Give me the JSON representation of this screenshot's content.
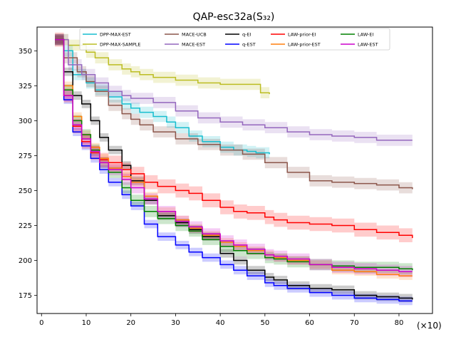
{
  "chart_data": {
    "type": "line",
    "title": "QAP-esc32a(S₃₂)",
    "xlabel": "",
    "ylabel": "",
    "x_multiplier_label": "(×10)",
    "xlim": [
      -1,
      87.5
    ],
    "ylim": [
      162,
      367
    ],
    "xticks": [
      0,
      10,
      20,
      30,
      40,
      50,
      60,
      70,
      80
    ],
    "yticks": [
      175,
      200,
      225,
      250,
      275,
      300,
      325,
      350
    ],
    "legend_position": "top-center",
    "series": [
      {
        "name": "DPP-MAX-EST",
        "color": "#17becf",
        "band": 4,
        "x": [
          3,
          5,
          7,
          10,
          12,
          15,
          18,
          20,
          22,
          25,
          28,
          30,
          33,
          36,
          40,
          43,
          46,
          48,
          51
        ],
        "y": [
          358,
          350,
          333,
          327,
          322,
          317,
          312,
          309,
          306,
          303,
          299,
          295,
          289,
          285,
          281,
          279,
          278,
          277,
          276
        ]
      },
      {
        "name": "DPP-MAX-SAMPLE",
        "color": "#bcbd22",
        "band": 4,
        "x": [
          3,
          6,
          10,
          12,
          15,
          18,
          20,
          22,
          25,
          30,
          35,
          40,
          45,
          48,
          49,
          51
        ],
        "y": [
          358,
          354,
          349,
          345,
          340,
          337,
          335,
          333,
          331,
          329,
          327,
          326,
          326,
          326,
          320,
          319
        ]
      },
      {
        "name": "MACE-UCB",
        "color": "#8c564b",
        "band": 4,
        "x": [
          3,
          5,
          8,
          10,
          12,
          15,
          18,
          20,
          22,
          25,
          30,
          35,
          40,
          45,
          50,
          55,
          60,
          65,
          70,
          75,
          80,
          83
        ],
        "y": [
          358,
          345,
          335,
          328,
          321,
          311,
          305,
          301,
          297,
          292,
          287,
          283,
          279,
          276,
          270,
          263,
          257,
          256,
          255,
          254,
          252,
          251
        ]
      },
      {
        "name": "MACE-EST",
        "color": "#9467bd",
        "band": 4,
        "x": [
          3,
          6,
          9,
          12,
          15,
          18,
          20,
          25,
          30,
          35,
          40,
          45,
          50,
          55,
          60,
          65,
          70,
          75,
          83
        ],
        "y": [
          358,
          340,
          333,
          327,
          321,
          318,
          316,
          313,
          307,
          302,
          299,
          297,
          295,
          292,
          290,
          289,
          288,
          286,
          286
        ]
      },
      {
        "name": "q-EI",
        "color": "#000000",
        "band": 3,
        "x": [
          3,
          5,
          7,
          9,
          11,
          13,
          15,
          18,
          20,
          23,
          26,
          30,
          33,
          36,
          40,
          43,
          46,
          50,
          52,
          55,
          60,
          65,
          70,
          75,
          80,
          83
        ],
        "y": [
          358,
          335,
          318,
          312,
          300,
          288,
          279,
          268,
          257,
          243,
          232,
          227,
          222,
          217,
          205,
          200,
          193,
          188,
          186,
          182,
          180,
          179,
          175,
          174,
          173,
          172
        ]
      },
      {
        "name": "q-EST",
        "color": "#0000ff",
        "band": 3,
        "x": [
          3,
          5,
          7,
          9,
          11,
          13,
          15,
          18,
          20,
          23,
          26,
          30,
          33,
          36,
          40,
          43,
          46,
          50,
          52,
          55,
          60,
          65,
          70,
          75,
          80,
          83
        ],
        "y": [
          358,
          315,
          292,
          282,
          273,
          265,
          256,
          247,
          239,
          226,
          217,
          211,
          206,
          202,
          197,
          193,
          189,
          184,
          182,
          180,
          177,
          175,
          173,
          172,
          171,
          171
        ]
      },
      {
        "name": "LAW-prior-EI",
        "color": "#ff0000",
        "band": 5,
        "x": [
          3,
          5,
          7,
          9,
          11,
          13,
          15,
          18,
          20,
          23,
          26,
          30,
          33,
          36,
          40,
          43,
          46,
          50,
          52,
          55,
          60,
          65,
          70,
          75,
          80,
          83
        ],
        "y": [
          358,
          318,
          296,
          285,
          277,
          272,
          270,
          265,
          262,
          256,
          253,
          250,
          248,
          243,
          238,
          235,
          234,
          231,
          229,
          227,
          226,
          225,
          222,
          220,
          218,
          216
        ]
      },
      {
        "name": "LAW-prior-EST",
        "color": "#ff7f0e",
        "band": 3,
        "x": [
          3,
          5,
          7,
          9,
          11,
          13,
          15,
          18,
          20,
          23,
          26,
          30,
          33,
          36,
          40,
          43,
          46,
          50,
          52,
          55,
          60,
          65,
          70,
          75,
          80,
          83
        ],
        "y": [
          358,
          325,
          303,
          290,
          281,
          273,
          266,
          260,
          256,
          246,
          235,
          229,
          223,
          218,
          213,
          210,
          207,
          204,
          202,
          200,
          197,
          193,
          192,
          190,
          189,
          189
        ]
      },
      {
        "name": "LAW-EI",
        "color": "#008000",
        "band": 4,
        "x": [
          3,
          5,
          7,
          9,
          11,
          13,
          15,
          18,
          20,
          23,
          26,
          30,
          33,
          36,
          40,
          43,
          46,
          50,
          52,
          55,
          60,
          65,
          70,
          75,
          80,
          83
        ],
        "y": [
          358,
          322,
          300,
          290,
          279,
          270,
          263,
          252,
          243,
          235,
          230,
          225,
          221,
          215,
          210,
          207,
          205,
          202,
          201,
          199,
          197,
          196,
          195,
          195,
          194,
          193
        ]
      },
      {
        "name": "LAW-EST",
        "color": "#cc00cc",
        "band": 4,
        "x": [
          3,
          5,
          7,
          9,
          11,
          13,
          15,
          18,
          20,
          23,
          26,
          30,
          33,
          36,
          40,
          43,
          46,
          50,
          52,
          55,
          60,
          65,
          70,
          75,
          80,
          83
        ],
        "y": [
          358,
          318,
          297,
          287,
          278,
          270,
          265,
          258,
          252,
          244,
          235,
          228,
          224,
          219,
          214,
          211,
          208,
          204,
          203,
          201,
          197,
          195,
          194,
          193,
          192,
          192
        ]
      }
    ]
  }
}
